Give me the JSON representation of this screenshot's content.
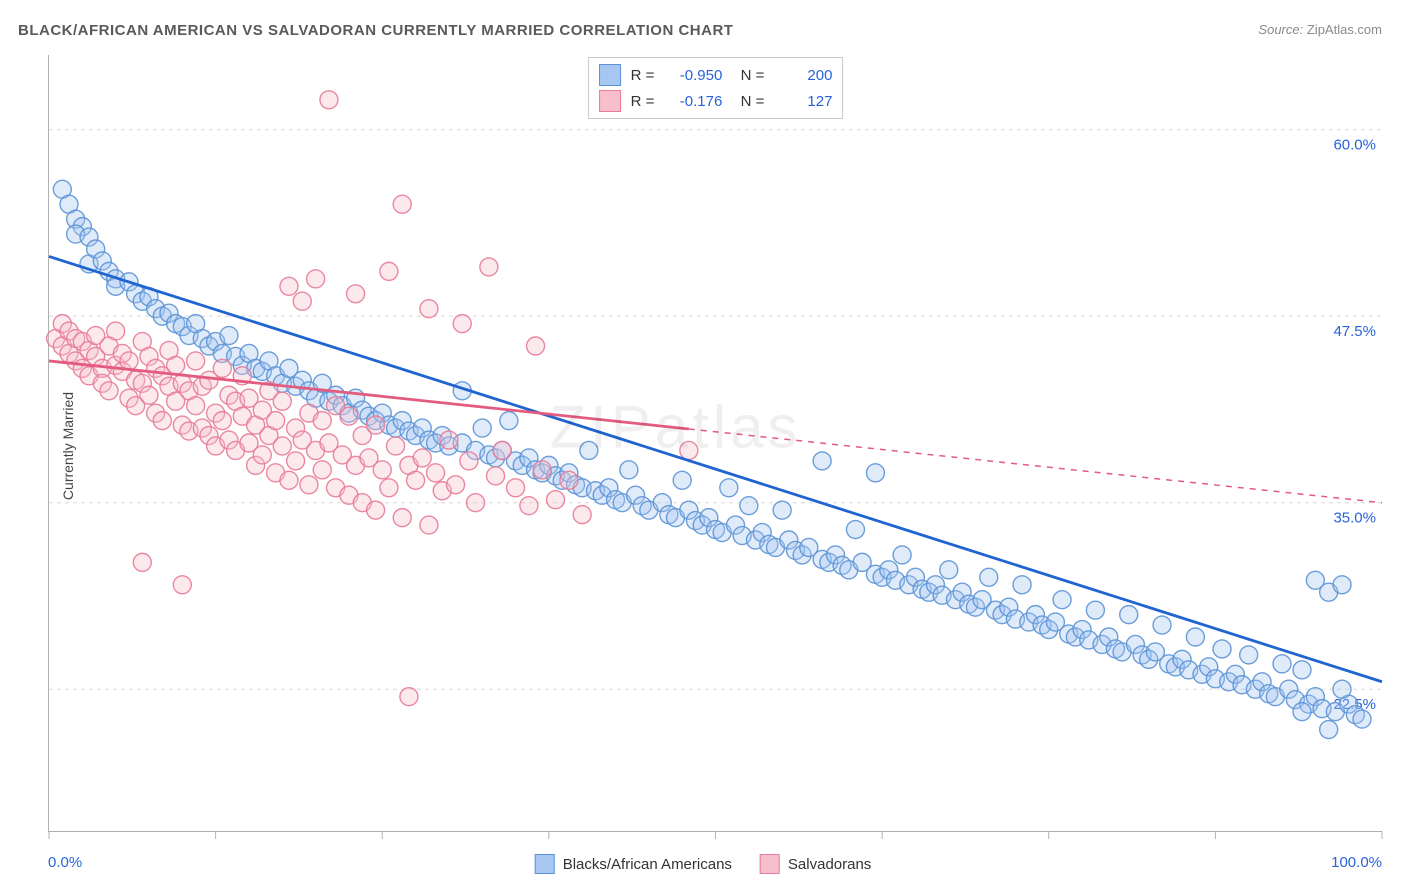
{
  "title": "BLACK/AFRICAN AMERICAN VS SALVADORAN CURRENTLY MARRIED CORRELATION CHART",
  "source_prefix": "Source:",
  "source_name": "ZipAtlas.com",
  "watermark": "ZIPatlas",
  "y_axis_label": "Currently Married",
  "chart": {
    "type": "scatter",
    "background_color": "#ffffff",
    "grid_color": "#d8d8d8",
    "axis_color": "#b0b0b0",
    "text_color": "#444444",
    "xlim": [
      0,
      100
    ],
    "ylim": [
      13,
      65
    ],
    "y_ticks": [
      22.5,
      35.0,
      47.5,
      60.0
    ],
    "y_tick_labels": [
      "22.5%",
      "35.0%",
      "47.5%",
      "60.0%"
    ],
    "y_tick_color": "#2962d9",
    "x_tick_labels": {
      "left": "0.0%",
      "right": "100.0%"
    },
    "x_minor_ticks": [
      0,
      12.5,
      25,
      37.5,
      50,
      62.5,
      75,
      87.5,
      100
    ],
    "marker_radius": 9,
    "marker_fill_opacity": 0.35,
    "marker_stroke_opacity": 0.9,
    "marker_stroke_width": 1.4,
    "trendline_width": 2.8
  },
  "series": [
    {
      "id": "blacks",
      "label": "Blacks/African Americans",
      "color_fill": "#a7c7f2",
      "color_stroke": "#5b93d6",
      "trend_color": "#1f64d0",
      "trend_dash": "none",
      "R": "-0.950",
      "N": "200",
      "trendline": {
        "x1": 0,
        "y1": 51.5,
        "x2": 100,
        "y2": 23.0
      },
      "points": [
        [
          1,
          56
        ],
        [
          1.5,
          55
        ],
        [
          2,
          54
        ],
        [
          2.5,
          53.5
        ],
        [
          2,
          53
        ],
        [
          3,
          52.8
        ],
        [
          3,
          51
        ],
        [
          3.5,
          52
        ],
        [
          4,
          51.2
        ],
        [
          4.5,
          50.5
        ],
        [
          5,
          50
        ],
        [
          5,
          49.5
        ],
        [
          6,
          49.8
        ],
        [
          6.5,
          49
        ],
        [
          7,
          48.5
        ],
        [
          7.5,
          48.8
        ],
        [
          8,
          48
        ],
        [
          8.5,
          47.5
        ],
        [
          9,
          47.7
        ],
        [
          9.5,
          47
        ],
        [
          10,
          46.8
        ],
        [
          10.5,
          46.2
        ],
        [
          11,
          47
        ],
        [
          11.5,
          46
        ],
        [
          12,
          45.5
        ],
        [
          12.5,
          45.8
        ],
        [
          13,
          45
        ],
        [
          13.5,
          46.2
        ],
        [
          14,
          44.8
        ],
        [
          14.5,
          44.2
        ],
        [
          15,
          45
        ],
        [
          15.5,
          44
        ],
        [
          16,
          43.8
        ],
        [
          16.5,
          44.5
        ],
        [
          17,
          43.5
        ],
        [
          17.5,
          43
        ],
        [
          18,
          44
        ],
        [
          18.5,
          42.8
        ],
        [
          19,
          43.2
        ],
        [
          19.5,
          42.5
        ],
        [
          20,
          42
        ],
        [
          20.5,
          43
        ],
        [
          21,
          41.8
        ],
        [
          21.5,
          42.2
        ],
        [
          22,
          41.5
        ],
        [
          22.5,
          41
        ],
        [
          23,
          42
        ],
        [
          23.5,
          41.2
        ],
        [
          24,
          40.8
        ],
        [
          24.5,
          40.5
        ],
        [
          25,
          41
        ],
        [
          25.5,
          40.2
        ],
        [
          26,
          40
        ],
        [
          26.5,
          40.5
        ],
        [
          27,
          39.8
        ],
        [
          27.5,
          39.5
        ],
        [
          28,
          40
        ],
        [
          28.5,
          39.2
        ],
        [
          29,
          39
        ],
        [
          29.5,
          39.5
        ],
        [
          30,
          38.8
        ],
        [
          31,
          39
        ],
        [
          31,
          42.5
        ],
        [
          32,
          38.5
        ],
        [
          32.5,
          40
        ],
        [
          33,
          38.2
        ],
        [
          33.5,
          38
        ],
        [
          34,
          38.5
        ],
        [
          34.5,
          40.5
        ],
        [
          35,
          37.8
        ],
        [
          35.5,
          37.5
        ],
        [
          36,
          38
        ],
        [
          36.5,
          37.2
        ],
        [
          37,
          37
        ],
        [
          37.5,
          37.5
        ],
        [
          38,
          36.8
        ],
        [
          38.5,
          36.5
        ],
        [
          39,
          37
        ],
        [
          39.5,
          36.2
        ],
        [
          40,
          36
        ],
        [
          40.5,
          38.5
        ],
        [
          41,
          35.8
        ],
        [
          41.5,
          35.5
        ],
        [
          42,
          36
        ],
        [
          42.5,
          35.2
        ],
        [
          43,
          35
        ],
        [
          43.5,
          37.2
        ],
        [
          44,
          35.5
        ],
        [
          44.5,
          34.8
        ],
        [
          45,
          34.5
        ],
        [
          46,
          35
        ],
        [
          46.5,
          34.2
        ],
        [
          47,
          34
        ],
        [
          47.5,
          36.5
        ],
        [
          48,
          34.5
        ],
        [
          48.5,
          33.8
        ],
        [
          49,
          33.5
        ],
        [
          49.5,
          34
        ],
        [
          50,
          33.2
        ],
        [
          50.5,
          33
        ],
        [
          51,
          36
        ],
        [
          51.5,
          33.5
        ],
        [
          52,
          32.8
        ],
        [
          52.5,
          34.8
        ],
        [
          53,
          32.5
        ],
        [
          53.5,
          33
        ],
        [
          54,
          32.2
        ],
        [
          54.5,
          32
        ],
        [
          55,
          34.5
        ],
        [
          55.5,
          32.5
        ],
        [
          56,
          31.8
        ],
        [
          56.5,
          31.5
        ],
        [
          57,
          32
        ],
        [
          58,
          37.8
        ],
        [
          58,
          31.2
        ],
        [
          58.5,
          31
        ],
        [
          59,
          31.5
        ],
        [
          59.5,
          30.8
        ],
        [
          60,
          30.5
        ],
        [
          60.5,
          33.2
        ],
        [
          61,
          31
        ],
        [
          62,
          30.2
        ],
        [
          62,
          37
        ],
        [
          62.5,
          30
        ],
        [
          63,
          30.5
        ],
        [
          63.5,
          29.8
        ],
        [
          64,
          31.5
        ],
        [
          64.5,
          29.5
        ],
        [
          65,
          30
        ],
        [
          65.5,
          29.2
        ],
        [
          66,
          29
        ],
        [
          66.5,
          29.5
        ],
        [
          67,
          28.8
        ],
        [
          67.5,
          30.5
        ],
        [
          68,
          28.5
        ],
        [
          68.5,
          29
        ],
        [
          69,
          28.2
        ],
        [
          69.5,
          28
        ],
        [
          70,
          28.5
        ],
        [
          70.5,
          30
        ],
        [
          71,
          27.8
        ],
        [
          71.5,
          27.5
        ],
        [
          72,
          28
        ],
        [
          72.5,
          27.2
        ],
        [
          73,
          29.5
        ],
        [
          73.5,
          27
        ],
        [
          74,
          27.5
        ],
        [
          74.5,
          26.8
        ],
        [
          75,
          26.5
        ],
        [
          75.5,
          27
        ],
        [
          76,
          28.5
        ],
        [
          76.5,
          26.2
        ],
        [
          77,
          26
        ],
        [
          77.5,
          26.5
        ],
        [
          78,
          25.8
        ],
        [
          78.5,
          27.8
        ],
        [
          79,
          25.5
        ],
        [
          79.5,
          26
        ],
        [
          80,
          25.2
        ],
        [
          80.5,
          25
        ],
        [
          81,
          27.5
        ],
        [
          81.5,
          25.5
        ],
        [
          82,
          24.8
        ],
        [
          82.5,
          24.5
        ],
        [
          83,
          25
        ],
        [
          83.5,
          26.8
        ],
        [
          84,
          24.2
        ],
        [
          84.5,
          24
        ],
        [
          85,
          24.5
        ],
        [
          85.5,
          23.8
        ],
        [
          86,
          26
        ],
        [
          86.5,
          23.5
        ],
        [
          87,
          24
        ],
        [
          87.5,
          23.2
        ],
        [
          88,
          25.2
        ],
        [
          88.5,
          23
        ],
        [
          89,
          23.5
        ],
        [
          89.5,
          22.8
        ],
        [
          90,
          24.8
        ],
        [
          90.5,
          22.5
        ],
        [
          91,
          23
        ],
        [
          91.5,
          22.2
        ],
        [
          92,
          22
        ],
        [
          92.5,
          24.2
        ],
        [
          93,
          22.5
        ],
        [
          93.5,
          21.8
        ],
        [
          94,
          23.8
        ],
        [
          94.5,
          21.5
        ],
        [
          95,
          22
        ],
        [
          95.5,
          21.2
        ],
        [
          96,
          29
        ],
        [
          96.5,
          21
        ],
        [
          97,
          29.5
        ],
        [
          97.5,
          21.5
        ],
        [
          98,
          20.8
        ],
        [
          95,
          29.8
        ],
        [
          97,
          22.5
        ],
        [
          98.5,
          20.5
        ],
        [
          94,
          21
        ],
        [
          96,
          19.8
        ]
      ]
    },
    {
      "id": "salvadorans",
      "label": "Salvadorans",
      "color_fill": "#f6bfcb",
      "color_stroke": "#e87b97",
      "trend_color": "#e35b7e",
      "trend_dash": "solid_then_dash",
      "trend_dash_split_x": 48,
      "R": "-0.176",
      "N": "127",
      "trendline": {
        "x1": 0,
        "y1": 44.5,
        "x2": 100,
        "y2": 35.0
      },
      "points": [
        [
          0.5,
          46
        ],
        [
          1,
          45.5
        ],
        [
          1,
          47
        ],
        [
          1.5,
          45
        ],
        [
          1.5,
          46.5
        ],
        [
          2,
          44.5
        ],
        [
          2,
          46
        ],
        [
          2.5,
          45.8
        ],
        [
          2.5,
          44
        ],
        [
          3,
          45.2
        ],
        [
          3,
          43.5
        ],
        [
          3.5,
          46.2
        ],
        [
          3.5,
          44.8
        ],
        [
          4,
          44
        ],
        [
          4,
          43
        ],
        [
          4.5,
          45.5
        ],
        [
          4.5,
          42.5
        ],
        [
          5,
          44.2
        ],
        [
          5,
          46.5
        ],
        [
          5.5,
          43.8
        ],
        [
          5.5,
          45
        ],
        [
          6,
          42
        ],
        [
          6,
          44.5
        ],
        [
          6.5,
          43.2
        ],
        [
          6.5,
          41.5
        ],
        [
          7,
          45.8
        ],
        [
          7,
          43
        ],
        [
          7.5,
          44.8
        ],
        [
          7.5,
          42.2
        ],
        [
          8,
          41
        ],
        [
          8,
          44
        ],
        [
          8.5,
          43.5
        ],
        [
          8.5,
          40.5
        ],
        [
          9,
          45.2
        ],
        [
          9,
          42.8
        ],
        [
          9.5,
          41.8
        ],
        [
          9.5,
          44.2
        ],
        [
          10,
          40.2
        ],
        [
          10,
          43
        ],
        [
          10.5,
          42.5
        ],
        [
          10.5,
          39.8
        ],
        [
          11,
          44.5
        ],
        [
          11,
          41.5
        ],
        [
          11.5,
          40
        ],
        [
          11.5,
          42.8
        ],
        [
          12,
          39.5
        ],
        [
          12,
          43.2
        ],
        [
          12.5,
          41
        ],
        [
          12.5,
          38.8
        ],
        [
          13,
          44
        ],
        [
          13,
          40.5
        ],
        [
          13.5,
          42.2
        ],
        [
          13.5,
          39.2
        ],
        [
          14,
          41.8
        ],
        [
          14,
          38.5
        ],
        [
          14.5,
          43.5
        ],
        [
          14.5,
          40.8
        ],
        [
          15,
          39
        ],
        [
          15,
          42
        ],
        [
          15.5,
          40.2
        ],
        [
          15.5,
          37.5
        ],
        [
          16,
          41.2
        ],
        [
          16,
          38.2
        ],
        [
          16.5,
          42.5
        ],
        [
          16.5,
          39.5
        ],
        [
          17,
          37
        ],
        [
          17,
          40.5
        ],
        [
          17.5,
          41.8
        ],
        [
          17.5,
          38.8
        ],
        [
          18,
          36.5
        ],
        [
          18,
          49.5
        ],
        [
          18.5,
          40
        ],
        [
          18.5,
          37.8
        ],
        [
          19,
          48.5
        ],
        [
          19,
          39.2
        ],
        [
          19.5,
          41
        ],
        [
          19.5,
          36.2
        ],
        [
          20,
          50
        ],
        [
          20,
          38.5
        ],
        [
          20.5,
          40.5
        ],
        [
          20.5,
          37.2
        ],
        [
          21,
          62
        ],
        [
          21,
          39
        ],
        [
          21.5,
          41.5
        ],
        [
          21.5,
          36
        ],
        [
          22,
          38.2
        ],
        [
          22.5,
          40.8
        ],
        [
          22.5,
          35.5
        ],
        [
          23,
          49
        ],
        [
          23,
          37.5
        ],
        [
          23.5,
          39.5
        ],
        [
          23.5,
          35
        ],
        [
          24,
          38
        ],
        [
          24.5,
          40.2
        ],
        [
          24.5,
          34.5
        ],
        [
          25,
          37.2
        ],
        [
          25.5,
          50.5
        ],
        [
          25.5,
          36
        ],
        [
          26,
          38.8
        ],
        [
          26.5,
          34
        ],
        [
          26.5,
          55
        ],
        [
          27,
          37.5
        ],
        [
          27.5,
          36.5
        ],
        [
          28,
          38
        ],
        [
          28.5,
          33.5
        ],
        [
          28.5,
          48
        ],
        [
          29,
          37
        ],
        [
          29.5,
          35.8
        ],
        [
          30,
          39.2
        ],
        [
          30.5,
          36.2
        ],
        [
          31,
          47
        ],
        [
          31.5,
          37.8
        ],
        [
          32,
          35
        ],
        [
          33,
          50.8
        ],
        [
          33.5,
          36.8
        ],
        [
          34,
          38.5
        ],
        [
          35,
          36
        ],
        [
          36,
          34.8
        ],
        [
          36.5,
          45.5
        ],
        [
          37,
          37.2
        ],
        [
          38,
          35.2
        ],
        [
          39,
          36.5
        ],
        [
          40,
          34.2
        ],
        [
          27,
          22
        ],
        [
          10,
          29.5
        ],
        [
          7,
          31
        ],
        [
          48,
          38.5
        ]
      ]
    }
  ],
  "bottom_legend": [
    {
      "label": "Blacks/African Americans",
      "fill": "#a7c7f2",
      "stroke": "#5b93d6"
    },
    {
      "label": "Salvadorans",
      "fill": "#f6bfcb",
      "stroke": "#e87b97"
    }
  ],
  "top_legend": {
    "r_label": "R =",
    "n_label": "N =",
    "rows": [
      {
        "fill": "#a7c7f2",
        "stroke": "#5b93d6",
        "R": "-0.950",
        "N": "200"
      },
      {
        "fill": "#f6bfcb",
        "stroke": "#e87b97",
        "R": "-0.176",
        "N": "127"
      }
    ]
  }
}
